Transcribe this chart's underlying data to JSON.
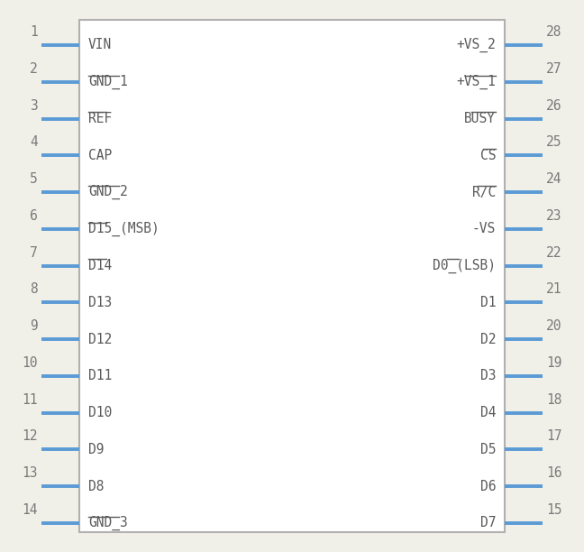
{
  "bg_color": "#f0efe8",
  "box_color": "#b0b0b0",
  "box_facecolor": "#ffffff",
  "pin_color": "#5b9bd5",
  "text_color": "#5a5a5a",
  "num_color": "#7a7a7a",
  "left_pins": [
    {
      "num": 1,
      "label": "VIN",
      "overline": ""
    },
    {
      "num": 2,
      "label": "GND_1",
      "overline": "GND_1"
    },
    {
      "num": 3,
      "label": "REF",
      "overline": "REF"
    },
    {
      "num": 4,
      "label": "CAP",
      "overline": ""
    },
    {
      "num": 5,
      "label": "GND_2",
      "overline": "GND_2"
    },
    {
      "num": 6,
      "label": "D15_(MSB)",
      "overline": "D15"
    },
    {
      "num": 7,
      "label": "D14",
      "overline": "D14"
    },
    {
      "num": 8,
      "label": "D13",
      "overline": ""
    },
    {
      "num": 9,
      "label": "D12",
      "overline": ""
    },
    {
      "num": 10,
      "label": "D11",
      "overline": ""
    },
    {
      "num": 11,
      "label": "D10",
      "overline": ""
    },
    {
      "num": 12,
      "label": "D9",
      "overline": ""
    },
    {
      "num": 13,
      "label": "D8",
      "overline": ""
    },
    {
      "num": 14,
      "label": "GND_3",
      "overline": "GND_3"
    }
  ],
  "right_pins": [
    {
      "num": 28,
      "label": "+VS_2",
      "overline": ""
    },
    {
      "num": 27,
      "label": "+VS_1",
      "overline": "+VS_1"
    },
    {
      "num": 26,
      "label": "BUSY",
      "overline": "BUSY"
    },
    {
      "num": 25,
      "label": "CS",
      "overline": "CS"
    },
    {
      "num": 24,
      "label": "R/C",
      "overline": "R/C"
    },
    {
      "num": 23,
      "label": "-VS",
      "overline": ""
    },
    {
      "num": 22,
      "label": "D0_(LSB)",
      "overline": "D0"
    },
    {
      "num": 21,
      "label": "D1",
      "overline": ""
    },
    {
      "num": 20,
      "label": "D2",
      "overline": ""
    },
    {
      "num": 19,
      "label": "D3",
      "overline": ""
    },
    {
      "num": 18,
      "label": "D4",
      "overline": ""
    },
    {
      "num": 17,
      "label": "D5",
      "overline": ""
    },
    {
      "num": 16,
      "label": "D6",
      "overline": ""
    },
    {
      "num": 15,
      "label": "D7",
      "overline": ""
    }
  ],
  "figsize": [
    6.48,
    6.12
  ],
  "dpi": 100
}
